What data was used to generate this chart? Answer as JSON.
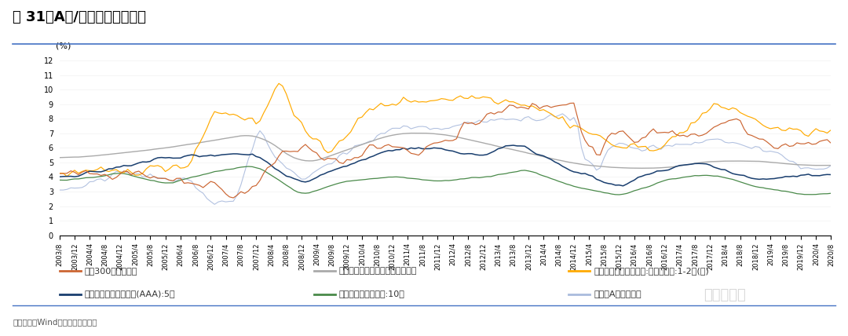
{
  "title": "图 31：A股/主要金融资产比价",
  "ylabel": "(%)",
  "source_text": "资料来源：Wind，国元证券研究所",
  "watermark": "观察员老陈",
  "ylim": [
    0,
    12
  ],
  "yticks": [
    0,
    1,
    2,
    3,
    4,
    5,
    6,
    7,
    8,
    9,
    10,
    11,
    12
  ],
  "line_colors": {
    "hushen300": "#CC6633",
    "loan_rate": "#AAAAAA",
    "trust": "#FFAA00",
    "corp_bond": "#1A3F6F",
    "gov_bond": "#4A8A4A",
    "wande_a": "#AABBDD"
  },
  "legend": [
    {
      "label": "沪深300隐含收益率",
      "color": "#CC6633"
    },
    {
      "label": "金融机构人民币贷款加权平均利率",
      "color": "#AAAAAA"
    },
    {
      "label": "信托产品预期年收益率:贷款类信托:1-2年(含)",
      "color": "#FFAA00"
    },
    {
      "label": "中债企业债到期收益率(AAA):5年",
      "color": "#1A3F6F"
    },
    {
      "label": "中债国债到期收益率:10年",
      "color": "#4A8A4A"
    },
    {
      "label": "万得全A隐含收益率",
      "color": "#AABBDD"
    }
  ],
  "background_color": "#FFFFFF",
  "title_color": "#000000",
  "title_fontsize": 13,
  "axis_fontsize": 7,
  "legend_fontsize": 8,
  "divider_color": "#4472C4"
}
